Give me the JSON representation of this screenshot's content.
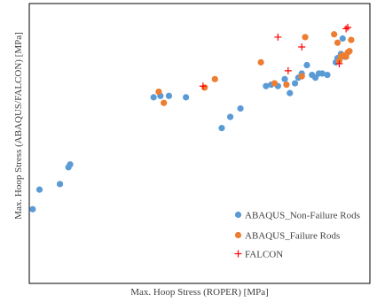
{
  "chart_data": {
    "type": "scatter",
    "title": "",
    "xlabel": "Max. Hoop Stress (ROPER) [MPa]",
    "ylabel": "Max. Hoop Stress (ABAQUS/FALCON) [MPa]",
    "xlim": [
      0,
      100
    ],
    "ylim": [
      0,
      100
    ],
    "ticks_shown": false,
    "grid": false,
    "legend_position": "bottom-right",
    "series": [
      {
        "name": "ABAQUS_Non-Failure Rods",
        "marker": "circle",
        "color": "#5B9BD5",
        "points": [
          [
            1,
            26.5
          ],
          [
            3,
            33.5
          ],
          [
            9,
            35.5
          ],
          [
            11.5,
            41.5
          ],
          [
            12,
            42.5
          ],
          [
            36.5,
            66.5
          ],
          [
            38.5,
            67
          ],
          [
            41,
            67
          ],
          [
            46,
            66.5
          ],
          [
            56.5,
            55.5
          ],
          [
            59,
            59.5
          ],
          [
            62,
            62.5
          ],
          [
            69.5,
            70.5
          ],
          [
            71,
            71
          ],
          [
            73,
            70.5
          ],
          [
            75,
            73
          ],
          [
            76.5,
            68
          ],
          [
            78,
            71.5
          ],
          [
            79,
            73.5
          ],
          [
            80,
            75
          ],
          [
            81.5,
            78
          ],
          [
            83,
            74.5
          ],
          [
            84,
            73.5
          ],
          [
            85,
            75
          ],
          [
            86,
            75
          ],
          [
            87.5,
            74.5
          ],
          [
            90,
            79
          ],
          [
            90.5,
            80.5
          ],
          [
            91.5,
            82
          ],
          [
            92,
            87.5
          ],
          [
            92.5,
            81
          ]
        ]
      },
      {
        "name": "ABAQUS_Failure Rods",
        "marker": "circle",
        "color": "#ED7D31",
        "points": [
          [
            38,
            68.5
          ],
          [
            39.5,
            64.5
          ],
          [
            51.5,
            70
          ],
          [
            54.5,
            73
          ],
          [
            68,
            79
          ],
          [
            72,
            71.5
          ],
          [
            75.5,
            71
          ],
          [
            80,
            74
          ],
          [
            81,
            88
          ],
          [
            89.5,
            89
          ],
          [
            90.5,
            86
          ],
          [
            91,
            79.5
          ],
          [
            91.5,
            81
          ],
          [
            92,
            81.5
          ],
          [
            93,
            81
          ],
          [
            93.5,
            82.5
          ],
          [
            94,
            83
          ],
          [
            94.5,
            87
          ]
        ]
      },
      {
        "name": "FALCON",
        "marker": "plus",
        "color": "#FF0000",
        "points": [
          [
            51,
            70.5
          ],
          [
            73,
            88
          ],
          [
            76,
            76
          ],
          [
            80,
            84.5
          ],
          [
            91,
            78.5
          ],
          [
            93,
            91
          ],
          [
            93.5,
            91.5
          ]
        ]
      }
    ]
  }
}
